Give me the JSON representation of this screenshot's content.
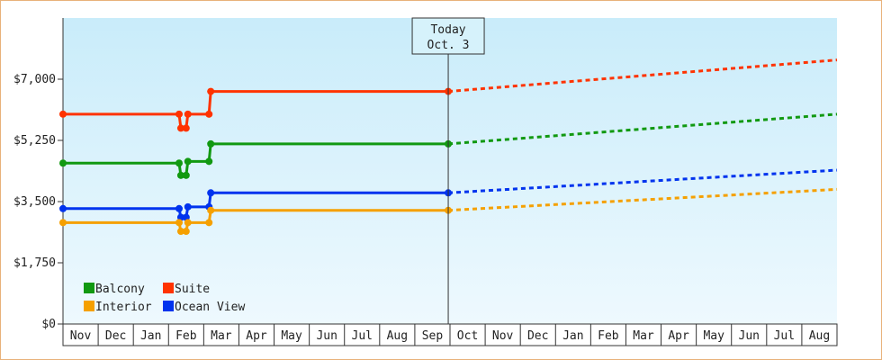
{
  "chart_data": {
    "type": "line",
    "title": "",
    "xlabel": "",
    "ylabel": "",
    "ylim": [
      0,
      8750
    ],
    "grid": false,
    "legend_position": "bottom-left",
    "y_ticks": [
      {
        "value": 0,
        "label": "$0"
      },
      {
        "value": 1750,
        "label": "$1,750"
      },
      {
        "value": 3500,
        "label": "$3,500"
      },
      {
        "value": 5250,
        "label": "$5,250"
      },
      {
        "value": 7000,
        "label": "$7,000"
      }
    ],
    "x_months": [
      "Nov",
      "Dec",
      "Jan",
      "Feb",
      "Mar",
      "Apr",
      "May",
      "Jun",
      "Jul",
      "Aug",
      "Sep",
      "Oct",
      "Nov",
      "Dec",
      "Jan",
      "Feb",
      "Mar",
      "Apr",
      "May",
      "Jun",
      "Jul",
      "Aug"
    ],
    "today": {
      "line1": "Today",
      "line2": "Oct. 3",
      "x": 10.95
    },
    "series": [
      {
        "name": "Suite",
        "color": "#ff3300",
        "points": [
          [
            0,
            6000
          ],
          [
            3.3,
            6000
          ],
          [
            3.35,
            5600
          ],
          [
            3.5,
            5600
          ],
          [
            3.55,
            6000
          ],
          [
            4.15,
            6000
          ],
          [
            4.2,
            6650
          ],
          [
            10.95,
            6650
          ]
        ],
        "forecast": [
          [
            10.95,
            6650
          ],
          [
            22.0,
            7550
          ]
        ]
      },
      {
        "name": "Balcony",
        "color": "#119911",
        "points": [
          [
            0,
            4600
          ],
          [
            3.3,
            4600
          ],
          [
            3.35,
            4250
          ],
          [
            3.5,
            4250
          ],
          [
            3.55,
            4650
          ],
          [
            4.15,
            4650
          ],
          [
            4.2,
            5150
          ],
          [
            10.95,
            5150
          ]
        ],
        "forecast": [
          [
            10.95,
            5150
          ],
          [
            22.0,
            6000
          ]
        ]
      },
      {
        "name": "Ocean View",
        "color": "#0033ee",
        "points": [
          [
            0,
            3300
          ],
          [
            3.3,
            3300
          ],
          [
            3.35,
            3050
          ],
          [
            3.5,
            3050
          ],
          [
            3.55,
            3350
          ],
          [
            4.15,
            3350
          ],
          [
            4.2,
            3750
          ],
          [
            10.95,
            3750
          ]
        ],
        "forecast": [
          [
            10.95,
            3750
          ],
          [
            22.0,
            4400
          ]
        ]
      },
      {
        "name": "Interior",
        "color": "#f5a000",
        "points": [
          [
            0,
            2900
          ],
          [
            3.3,
            2900
          ],
          [
            3.35,
            2650
          ],
          [
            3.5,
            2650
          ],
          [
            3.55,
            2900
          ],
          [
            4.15,
            2900
          ],
          [
            4.2,
            3250
          ],
          [
            10.95,
            3250
          ]
        ],
        "forecast": [
          [
            10.95,
            3250
          ],
          [
            22.0,
            3850
          ]
        ]
      }
    ],
    "legend": [
      {
        "name": "Balcony",
        "color": "#119911"
      },
      {
        "name": "Suite",
        "color": "#ff3300"
      },
      {
        "name": "Interior",
        "color": "#f5a000"
      },
      {
        "name": "Ocean View",
        "color": "#0033ee"
      }
    ]
  }
}
